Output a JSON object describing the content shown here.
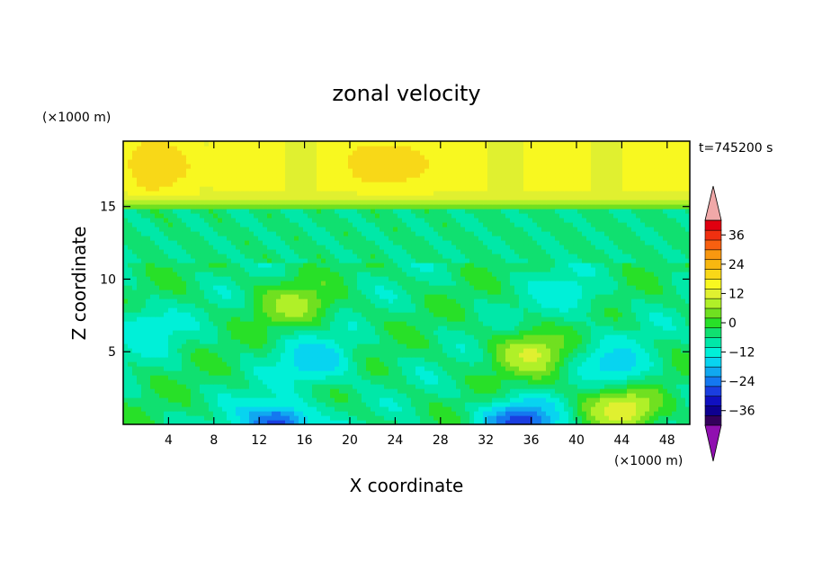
{
  "chart_data": {
    "type": "heatmap",
    "title": "zonal velocity",
    "xlabel": "X coordinate",
    "ylabel": "Z coordinate",
    "x_unit": "(×1000 m)",
    "y_unit": "(×1000 m)",
    "time_label": "t=745200 s",
    "xlim": [
      0,
      50
    ],
    "ylim": [
      0,
      19.5
    ],
    "x_ticks": [
      4,
      8,
      12,
      16,
      20,
      24,
      28,
      32,
      36,
      40,
      44,
      48
    ],
    "y_ticks": [
      5,
      10,
      15
    ],
    "x_tick_labels": [
      "4",
      "8",
      "12",
      "16",
      "20",
      "24",
      "28",
      "32",
      "36",
      "40",
      "44",
      "48"
    ],
    "y_tick_labels": [
      "5",
      "10",
      "15"
    ],
    "colorbar": {
      "min": -42,
      "max": 42,
      "step": 4,
      "extend": "both",
      "tick_values": [
        36,
        24,
        12,
        0,
        -12,
        -24,
        -36
      ],
      "tick_labels": [
        "36",
        "24",
        "12",
        "0",
        "−12",
        "−24",
        "−36"
      ],
      "colors": [
        "#34005c",
        "#0e0090",
        "#1010c0",
        "#1a3ee0",
        "#1478f0",
        "#10a8f0",
        "#08d4f0",
        "#00f0d8",
        "#00e8a8",
        "#10e070",
        "#28e028",
        "#70e020",
        "#b0f028",
        "#e0f030",
        "#f8f820",
        "#f8d818",
        "#f8b810",
        "#f89810",
        "#f86010",
        "#f03010",
        "#e00010"
      ],
      "under_color": "#9010b0",
      "over_color": "#f0a8a8"
    },
    "field_description": "zonal velocity u(x, z) in m/s; x from 0 to 50 km, z from 0 to 19.5 km",
    "features": [
      {
        "region": "upper jet band",
        "x_range": [
          0,
          50
        ],
        "z_range": [
          16,
          19.5
        ],
        "approx_value": 16
      },
      {
        "region": "jet core",
        "x_center": 24,
        "z_center": 18,
        "approx_value": 22
      },
      {
        "region": "jet core (west)",
        "x_center": 3.5,
        "z_center": 17.9,
        "approx_value": 21
      },
      {
        "region": "mid-level weak flow",
        "x_range": [
          0,
          50
        ],
        "z_range": [
          11,
          15
        ],
        "approx_value": -5
      },
      {
        "region": "broad low-level flow",
        "x_range": [
          0,
          50
        ],
        "z_range": [
          0,
          11
        ],
        "approx_value": -5
      },
      {
        "region": "positive blob",
        "x_center": 15,
        "z_center": 8.2,
        "approx_value": 8
      },
      {
        "region": "positive blob",
        "x_center": 36,
        "z_center": 4.8,
        "approx_value": 11
      },
      {
        "region": "positive blob",
        "x_center": 44,
        "z_center": 1.2,
        "approx_value": 14
      },
      {
        "region": "negative core",
        "x_center": 13.5,
        "z_center": 0,
        "approx_value": -28
      },
      {
        "region": "negative core",
        "x_center": 35,
        "z_center": 0,
        "approx_value": -30
      },
      {
        "region": "negative core",
        "x_center": 17,
        "z_center": 4.5,
        "approx_value": -18
      },
      {
        "region": "negative core",
        "x_center": 43.5,
        "z_center": 4.2,
        "approx_value": -16
      },
      {
        "region": "negative patch",
        "x_center": 2,
        "z_center": 6.5,
        "approx_value": -13
      },
      {
        "region": "negative patch",
        "x_center": 39,
        "z_center": 9,
        "approx_value": -12
      }
    ]
  }
}
